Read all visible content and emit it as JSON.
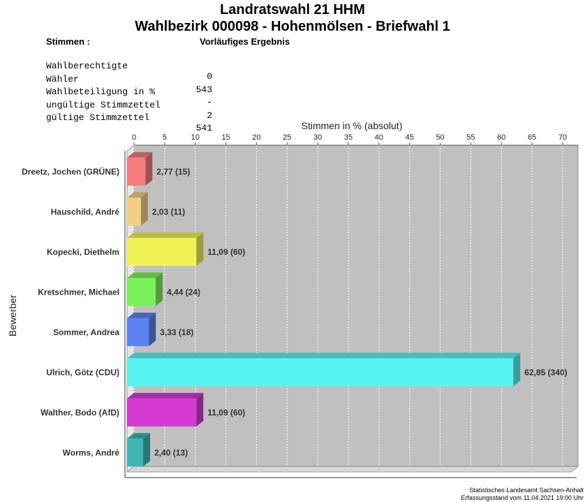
{
  "header": {
    "title1": "Landratswahl 21 HHM",
    "title2": "Wahlbezirk 000098 - Hohenmölsen - Briefwahl 1"
  },
  "stats": {
    "head_left": "Stimmen  :",
    "head_right": "Vorläufiges Ergebnis",
    "rows": [
      {
        "label": "Wahlberechtigte",
        "value": "0"
      },
      {
        "label": "Wähler",
        "value": "543"
      },
      {
        "label": "Wahlbeteiligung in %",
        "value": "-"
      },
      {
        "label": "ungültige Stimmzettel",
        "value": "2"
      },
      {
        "label": "gültige Stimmzettel",
        "value": "541"
      }
    ]
  },
  "chart_data": {
    "type": "bar",
    "orientation": "horizontal",
    "title": "Stimmen in % (absolut)",
    "ylabel": "Bewerber",
    "xlim": [
      0,
      70
    ],
    "xticks": [
      0,
      5,
      10,
      15,
      20,
      25,
      30,
      35,
      40,
      45,
      50,
      55,
      60,
      65,
      70
    ],
    "grid": true,
    "categories": [
      "Dreetz, Jochen (GRÜNE)",
      "Hauschild, André",
      "Kopecki, Diethelm",
      "Kretschmer, Michael",
      "Sommer, Andrea",
      "Ulrich, Götz (CDU)",
      "Walther, Bodo (AfD)",
      "Worms, André"
    ],
    "values": [
      2.77,
      2.03,
      11.09,
      4.44,
      3.33,
      62.85,
      11.09,
      2.4
    ],
    "absolute": [
      15,
      11,
      60,
      24,
      18,
      340,
      60,
      13
    ],
    "labels": [
      "2,77 (15)",
      "2,03 (11)",
      "11,09 (60)",
      "4,44 (24)",
      "3,33 (18)",
      "62,85 (340)",
      "11,09 (60)",
      "2,40 (13)"
    ],
    "colors": [
      "#f47c7c",
      "#f2cf82",
      "#f2f257",
      "#7cf25a",
      "#5a82f2",
      "#57f2f2",
      "#d23ad2",
      "#3fb5b5"
    ]
  },
  "footer": {
    "line1": "Statistisches Landesamt Sachsen-Anhalt",
    "line2": "Erfassungsstand vom 11.04.2021 19:00 Uhr"
  }
}
